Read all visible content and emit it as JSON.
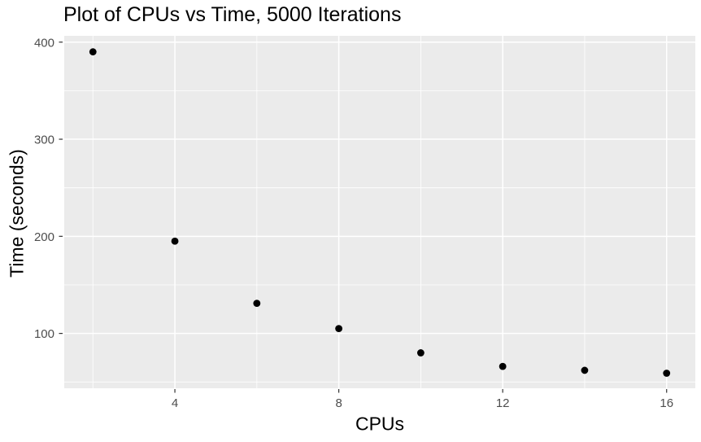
{
  "figure": {
    "background": "#FFFFFF"
  },
  "chart_data": {
    "type": "scatter",
    "title": "Plot of CPUs vs Time, 5000 Iterations",
    "xlabel": "CPUs",
    "ylabel": "Time (seconds)",
    "x": [
      2,
      4,
      6,
      8,
      10,
      12,
      14,
      16
    ],
    "y": [
      390,
      195,
      131,
      105,
      80,
      66,
      62,
      59
    ],
    "x_ticks": [
      4,
      8,
      12,
      16
    ],
    "y_ticks": [
      100,
      200,
      300,
      400
    ],
    "x_minor_ticks": [
      2,
      6,
      10,
      14
    ],
    "y_minor_ticks": [
      50,
      150,
      250,
      350
    ],
    "xlim": [
      1.3,
      16.7
    ],
    "ylim": [
      43.5,
      406.5
    ],
    "grid": true,
    "legend": "none",
    "point_color": "#000000",
    "panel_bg": "#EBEBEB",
    "grid_color": "#FFFFFF",
    "tick_label_color": "#4D4D4D",
    "tick_mark_color": "#333333",
    "text_color": "#000000"
  }
}
